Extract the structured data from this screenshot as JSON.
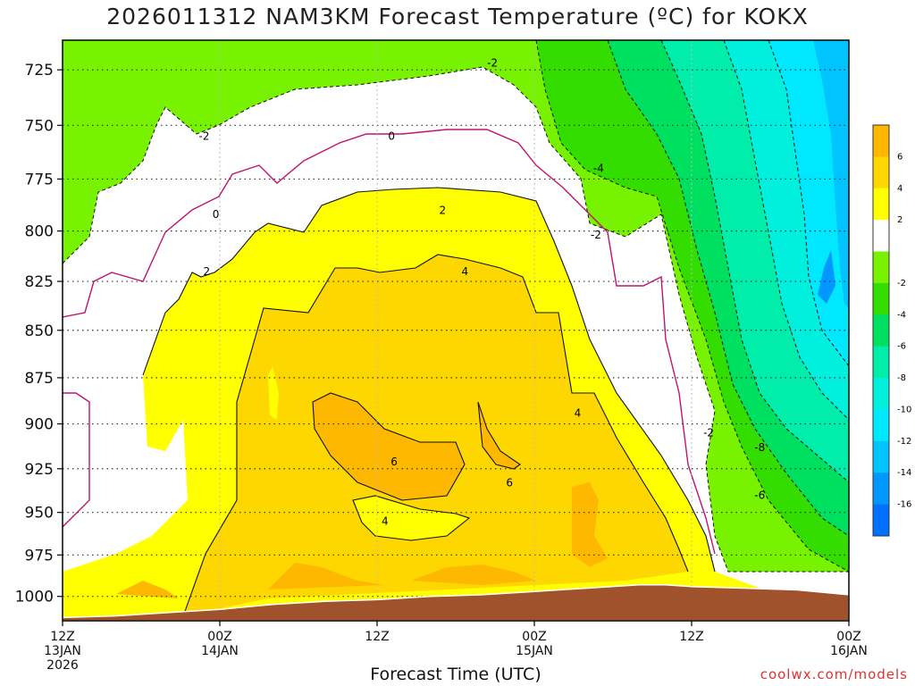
{
  "title": "2026011312 NAM3KM Forecast Temperature (ºC) for KOKX",
  "credit": "coolwx.com/models",
  "chart_data": {
    "type": "heatmap",
    "title": "2026011312 NAM3KM Forecast Temperature (ºC) for KOKX",
    "xlabel": "Forecast Time (UTC)",
    "ylabel": "",
    "x_hours": [
      0,
      12,
      24,
      36,
      48,
      60
    ],
    "xlim": [
      0,
      60
    ],
    "x_tick_labels": [
      [
        "12Z",
        "13JAN",
        "2026"
      ],
      [
        "00Z",
        "14JAN"
      ],
      [
        "12Z"
      ],
      [
        "00Z",
        "15JAN"
      ],
      [
        "12Z"
      ],
      [
        "00Z",
        "16JAN"
      ]
    ],
    "y_ticks": [
      725,
      750,
      775,
      800,
      825,
      850,
      875,
      900,
      925,
      950,
      975,
      1000
    ],
    "ylim": [
      1015,
      712
    ],
    "y_scale": "log-pressure",
    "grid": true,
    "colorbar": {
      "labels": [
        "6",
        "4",
        "2",
        "-2",
        "-4",
        "-6",
        "-8",
        "-10",
        "-12",
        "-14",
        "-16"
      ],
      "levels": [
        8,
        6,
        4,
        2,
        0,
        -2,
        -4,
        -6,
        -8,
        -10,
        -12,
        -14,
        -16,
        -18
      ],
      "colors": [
        "#ffb800",
        "#ffd700",
        "#ffff00",
        "#ffffff",
        "#77f200",
        "#33dd00",
        "#00e060",
        "#00eeaa",
        "#00f0dd",
        "#00e8ff",
        "#00c4ff",
        "#0098ff",
        "#0070ff"
      ]
    },
    "contour_labels": [
      "-2",
      "-2",
      "0",
      "0",
      "2",
      "2",
      "4",
      "4",
      "6",
      "6",
      "4",
      "-4",
      "-2",
      "-2",
      "-8",
      "-6"
    ],
    "contour_label_values": [
      -2,
      -2,
      0,
      0,
      2,
      2,
      4,
      4,
      6,
      6,
      4,
      -4,
      -2,
      -2,
      -8,
      -6
    ],
    "contour_label_points": [
      [
        10.8,
        755
      ],
      [
        32.8,
        722
      ],
      [
        11.7,
        792
      ],
      [
        25.1,
        755
      ],
      [
        11.0,
        820
      ],
      [
        29.0,
        790
      ],
      [
        30.7,
        820
      ],
      [
        39.3,
        894
      ],
      [
        25.3,
        921
      ],
      [
        34.1,
        933
      ],
      [
        24.6,
        955
      ],
      [
        40.9,
        770
      ],
      [
        40.7,
        802
      ],
      [
        49.3,
        905
      ],
      [
        53.2,
        913
      ],
      [
        53.2,
        940
      ]
    ],
    "terrain_surface_hPa": [
      [
        0,
        1013
      ],
      [
        4,
        1012
      ],
      [
        8,
        1010
      ],
      [
        12,
        1008
      ],
      [
        16,
        1005
      ],
      [
        20,
        1003
      ],
      [
        24,
        1002
      ],
      [
        28,
        1000
      ],
      [
        32,
        999
      ],
      [
        36,
        997
      ],
      [
        40,
        995
      ],
      [
        44,
        993
      ],
      [
        46,
        993
      ],
      [
        48,
        994
      ],
      [
        52,
        995
      ],
      [
        56,
        996
      ],
      [
        60,
        999
      ]
    ]
  }
}
